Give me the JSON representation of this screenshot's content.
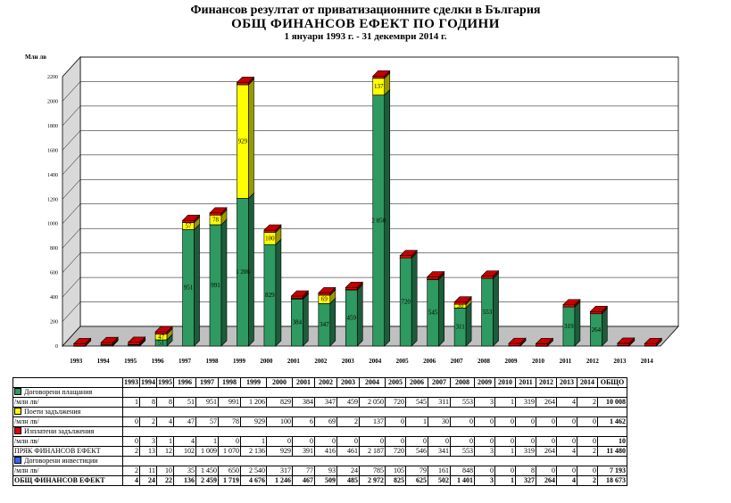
{
  "title": {
    "line1": "Финансов резултат от приватизационните сделки в България",
    "line2": "ОБЩ ФИНАНСОВ ЕФЕКТ ПО ГОДИНИ",
    "line3": "1 януари 1993 г. - 31 декември 2014 г."
  },
  "chart_data": {
    "type": "bar",
    "stacked": true,
    "ylabel": "Млн лв",
    "ylim": [
      0,
      2200
    ],
    "yticks": [
      0,
      200,
      400,
      600,
      800,
      1000,
      1200,
      1400,
      1600,
      1800,
      2000,
      2200
    ],
    "grid": true,
    "categories": [
      "1993",
      "1994",
      "1995",
      "1996",
      "1997",
      "1998",
      "1999",
      "2000",
      "2001",
      "2002",
      "2003",
      "2004",
      "2005",
      "2006",
      "2007",
      "2008",
      "2009",
      "2010",
      "2011",
      "2012",
      "2013",
      "2014"
    ],
    "series": [
      {
        "name": "Договорени плащания",
        "color": "#2e9960",
        "values": [
          1,
          8,
          8,
          51,
          951,
          991,
          1206,
          829,
          384,
          347,
          459,
          2050,
          720,
          545,
          311,
          553,
          3,
          1,
          319,
          264,
          4,
          2
        ],
        "labels": [
          "",
          "",
          "",
          "51",
          "951",
          "991",
          "1 206",
          "829",
          "384",
          "347",
          "459",
          "2 050",
          "720",
          "545",
          "311",
          "553",
          "",
          "",
          "319",
          "264",
          "",
          ""
        ]
      },
      {
        "name": "Поети задължения",
        "color": "#ffff00",
        "values": [
          0,
          2,
          4,
          47,
          57,
          78,
          929,
          100,
          6,
          69,
          2,
          137,
          0,
          1,
          30,
          0,
          0,
          0,
          0,
          0,
          0,
          0
        ],
        "labels": [
          "",
          "",
          "",
          "47",
          "57",
          "78",
          "929",
          "100",
          "",
          "69",
          "",
          "137",
          "",
          "",
          "30",
          "",
          "",
          "",
          "",
          "",
          "",
          ""
        ]
      },
      {
        "name": "Изплатени задължения",
        "color": "#e60000",
        "values": [
          0,
          3,
          1,
          4,
          1,
          0,
          1,
          0,
          0,
          0,
          0,
          0,
          0,
          0,
          0,
          0,
          0,
          0,
          0,
          0,
          0,
          0
        ]
      }
    ]
  },
  "table": {
    "header": [
      "1993",
      "1994",
      "1995",
      "1996",
      "1997",
      "1998",
      "1999",
      "2000",
      "2001",
      "2002",
      "2003",
      "2004",
      "2005",
      "2006",
      "2007",
      "2008",
      "2009",
      "2010",
      "2011",
      "2012",
      "2013",
      "2014",
      "ОБЩО"
    ],
    "rows": [
      {
        "label": "Договорени плащания",
        "swatch": "#2e9960",
        "cells": []
      },
      {
        "label": "/млн лв/",
        "bold": false,
        "cells": [
          "1",
          "8",
          "8",
          "51",
          "951",
          "991",
          "1 206",
          "829",
          "384",
          "347",
          "459",
          "2 050",
          "720",
          "545",
          "311",
          "553",
          "3",
          "1",
          "319",
          "264",
          "4",
          "2",
          "10 008"
        ]
      },
      {
        "label": "Поети задължения",
        "swatch": "#ffff00",
        "cells": []
      },
      {
        "label": "/млн лв/",
        "bold": false,
        "cells": [
          "0",
          "2",
          "4",
          "47",
          "57",
          "78",
          "929",
          "100",
          "6",
          "69",
          "2",
          "137",
          "0",
          "1",
          "30",
          "0",
          "0",
          "0",
          "0",
          "0",
          "0",
          "0",
          "1 462"
        ]
      },
      {
        "label": "Изплатени задължения",
        "swatch": "#e60000",
        "cells": []
      },
      {
        "label": "/млн лв/",
        "bold": false,
        "cells": [
          "0",
          "3",
          "1",
          "4",
          "1",
          "0",
          "1",
          "0",
          "0",
          "0",
          "0",
          "0",
          "0",
          "0",
          "0",
          "0",
          "0",
          "0",
          "0",
          "0",
          "0",
          "0",
          "10"
        ]
      },
      {
        "label": "ПРЯК ФИНАНСОВ ЕФЕКТ",
        "bold": false,
        "cells": [
          "2",
          "13",
          "12",
          "102",
          "1 009",
          "1 070",
          "2 136",
          "929",
          "391",
          "416",
          "461",
          "2 187",
          "720",
          "546",
          "341",
          "553",
          "3",
          "1",
          "319",
          "264",
          "4",
          "2",
          "11 480"
        ]
      },
      {
        "label": "Договорени инвестиции",
        "swatch": "#3366ff",
        "cells": []
      },
      {
        "label": "/млн лв/",
        "bold": false,
        "cells": [
          "2",
          "11",
          "10",
          "35",
          "1 450",
          "650",
          "2 540",
          "317",
          "77",
          "93",
          "24",
          "785",
          "105",
          "79",
          "161",
          "848",
          "0",
          "0",
          "8",
          "0",
          "0",
          "0",
          "7 193"
        ]
      },
      {
        "label": "ОБЩ ФИНАНСОВ ЕФЕКТ",
        "bold": true,
        "cells": [
          "4",
          "24",
          "22",
          "136",
          "2 459",
          "1 719",
          "4 676",
          "1 246",
          "467",
          "509",
          "485",
          "2 972",
          "825",
          "625",
          "502",
          "1 401",
          "3",
          "1",
          "327",
          "264",
          "4",
          "2",
          "18 673"
        ]
      }
    ]
  }
}
